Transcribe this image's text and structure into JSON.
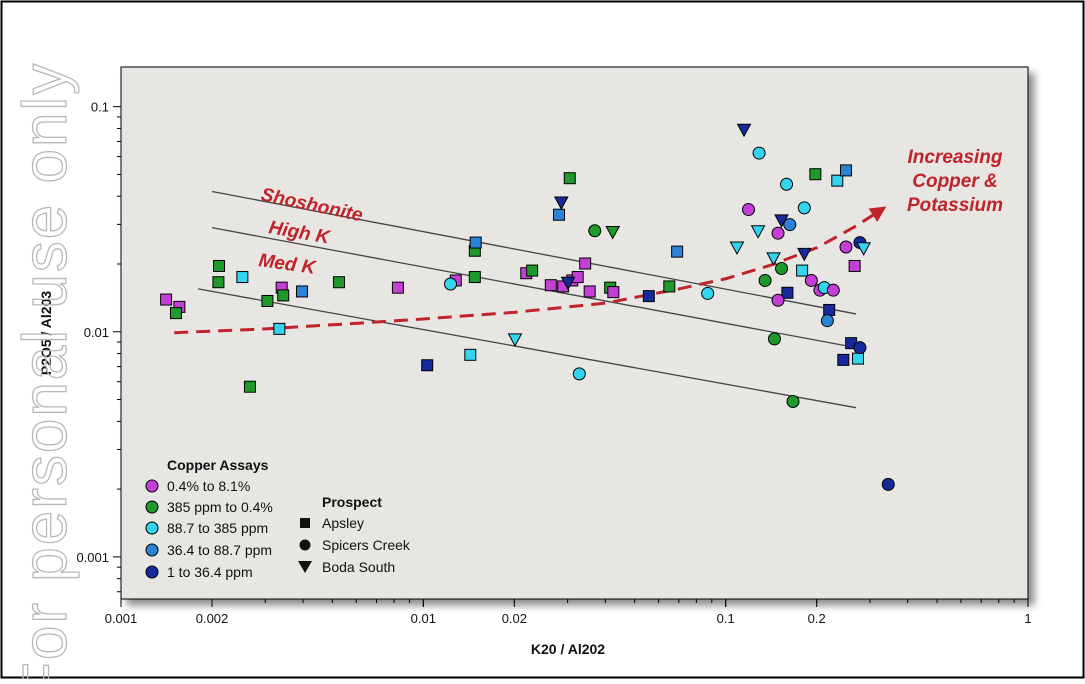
{
  "watermark": "For personal use only",
  "colors": {
    "background": "#ffffff",
    "plot_bg": "#e8e6e3",
    "frame": "#000000",
    "trend": "#c0232a",
    "magenta": "#c43fd6",
    "green": "#1e9a2c",
    "cyan": "#35d4ee",
    "blue": "#2b83d6",
    "navy": "#152a9c"
  },
  "chart_data": {
    "type": "scatter",
    "title": "",
    "xlabel": "K20 / Al202",
    "ylabel": "P2O5 / Al203",
    "x_scale": "log",
    "y_scale": "log",
    "xlim": [
      0.001,
      1
    ],
    "ylim": [
      0.00065,
      0.15
    ],
    "grid": false,
    "x_ticks": [
      {
        "value": 0.001,
        "label": "0.001"
      },
      {
        "value": 0.002,
        "label": "0.002"
      },
      {
        "value": 0.01,
        "label": "0.01"
      },
      {
        "value": 0.02,
        "label": "0.02"
      },
      {
        "value": 0.1,
        "label": "0.1"
      },
      {
        "value": 0.2,
        "label": "0.2"
      },
      {
        "value": 1,
        "label": "1"
      }
    ],
    "y_ticks": [
      {
        "value": 0.001,
        "label": "0.001"
      },
      {
        "value": 0.01,
        "label": "0.01"
      },
      {
        "value": 0.1,
        "label": "0.1"
      }
    ],
    "reference_lines": [
      {
        "label": "Shoshonite",
        "from": [
          0.002,
          0.042
        ],
        "to": [
          0.27,
          0.012
        ]
      },
      {
        "label": "High K",
        "from": [
          0.002,
          0.029
        ],
        "to": [
          0.27,
          0.0085
        ]
      },
      {
        "label": "Med K",
        "from": [
          0.0018,
          0.0155
        ],
        "to": [
          0.27,
          0.0046
        ]
      }
    ],
    "trend": {
      "label_lines": [
        "Increasing",
        "Copper &",
        "Potassium"
      ],
      "points": [
        [
          0.0015,
          0.0099
        ],
        [
          0.003,
          0.0103
        ],
        [
          0.006,
          0.0109
        ],
        [
          0.01,
          0.0114
        ],
        [
          0.02,
          0.0122
        ],
        [
          0.04,
          0.0134
        ],
        [
          0.07,
          0.0155
        ],
        [
          0.1,
          0.0172
        ],
        [
          0.14,
          0.0197
        ],
        [
          0.2,
          0.0236
        ],
        [
          0.27,
          0.0295
        ],
        [
          0.34,
          0.036
        ]
      ]
    },
    "legend": {
      "position": "bottom-left",
      "copper_title": "Copper Assays",
      "copper_classes": [
        {
          "key": "magenta",
          "label": "0.4% to 8.1%"
        },
        {
          "key": "green",
          "label": "385 ppm to 0.4%"
        },
        {
          "key": "cyan",
          "label": "88.7 to 385 ppm"
        },
        {
          "key": "blue",
          "label": "36.4 to 88.7 ppm"
        },
        {
          "key": "navy",
          "label": "1 to 36.4 ppm"
        }
      ],
      "prospect_title": "Prospect",
      "prospects": [
        {
          "shape": "square",
          "label": "Apsley"
        },
        {
          "shape": "circle",
          "label": "Spicers Creek"
        },
        {
          "shape": "triangle",
          "label": "Boda South"
        }
      ]
    },
    "points": [
      {
        "x": 0.00141,
        "y": 0.0139,
        "shape": "square",
        "cls": "magenta"
      },
      {
        "x": 0.00156,
        "y": 0.0129,
        "shape": "square",
        "cls": "magenta"
      },
      {
        "x": 0.00152,
        "y": 0.0121,
        "shape": "square",
        "cls": "green"
      },
      {
        "x": 0.00211,
        "y": 0.0196,
        "shape": "square",
        "cls": "green"
      },
      {
        "x": 0.0021,
        "y": 0.0166,
        "shape": "square",
        "cls": "green"
      },
      {
        "x": 0.00252,
        "y": 0.0175,
        "shape": "square",
        "cls": "cyan"
      },
      {
        "x": 0.00267,
        "y": 0.0057,
        "shape": "square",
        "cls": "green"
      },
      {
        "x": 0.00305,
        "y": 0.0137,
        "shape": "square",
        "cls": "green"
      },
      {
        "x": 0.0034,
        "y": 0.0157,
        "shape": "square",
        "cls": "magenta"
      },
      {
        "x": 0.00344,
        "y": 0.0145,
        "shape": "square",
        "cls": "green"
      },
      {
        "x": 0.00334,
        "y": 0.0103,
        "shape": "square",
        "cls": "cyan"
      },
      {
        "x": 0.00397,
        "y": 0.0151,
        "shape": "square",
        "cls": "blue"
      },
      {
        "x": 0.00526,
        "y": 0.0166,
        "shape": "square",
        "cls": "green"
      },
      {
        "x": 0.00824,
        "y": 0.0157,
        "shape": "square",
        "cls": "magenta"
      },
      {
        "x": 0.0103,
        "y": 0.0071,
        "shape": "square",
        "cls": "navy"
      },
      {
        "x": 0.0128,
        "y": 0.0169,
        "shape": "square",
        "cls": "magenta"
      },
      {
        "x": 0.0143,
        "y": 0.0079,
        "shape": "square",
        "cls": "cyan"
      },
      {
        "x": 0.0148,
        "y": 0.0175,
        "shape": "square",
        "cls": "green"
      },
      {
        "x": 0.0148,
        "y": 0.0229,
        "shape": "square",
        "cls": "green"
      },
      {
        "x": 0.0149,
        "y": 0.0249,
        "shape": "square",
        "cls": "blue"
      },
      {
        "x": 0.0219,
        "y": 0.0182,
        "shape": "square",
        "cls": "magenta"
      },
      {
        "x": 0.0229,
        "y": 0.0187,
        "shape": "square",
        "cls": "green"
      },
      {
        "x": 0.0264,
        "y": 0.0161,
        "shape": "square",
        "cls": "magenta"
      },
      {
        "x": 0.0281,
        "y": 0.0331,
        "shape": "square",
        "cls": "blue"
      },
      {
        "x": 0.029,
        "y": 0.0159,
        "shape": "square",
        "cls": "magenta"
      },
      {
        "x": 0.0305,
        "y": 0.0481,
        "shape": "square",
        "cls": "green"
      },
      {
        "x": 0.0311,
        "y": 0.0169,
        "shape": "square",
        "cls": "magenta"
      },
      {
        "x": 0.0324,
        "y": 0.0175,
        "shape": "square",
        "cls": "magenta"
      },
      {
        "x": 0.0343,
        "y": 0.0201,
        "shape": "square",
        "cls": "magenta"
      },
      {
        "x": 0.0355,
        "y": 0.0151,
        "shape": "square",
        "cls": "magenta"
      },
      {
        "x": 0.0415,
        "y": 0.0157,
        "shape": "square",
        "cls": "green"
      },
      {
        "x": 0.0425,
        "y": 0.015,
        "shape": "square",
        "cls": "magenta"
      },
      {
        "x": 0.0557,
        "y": 0.0144,
        "shape": "square",
        "cls": "navy"
      },
      {
        "x": 0.0651,
        "y": 0.0159,
        "shape": "square",
        "cls": "green"
      },
      {
        "x": 0.0691,
        "y": 0.0227,
        "shape": "square",
        "cls": "blue"
      },
      {
        "x": 0.16,
        "y": 0.0149,
        "shape": "square",
        "cls": "navy"
      },
      {
        "x": 0.179,
        "y": 0.0187,
        "shape": "square",
        "cls": "cyan"
      },
      {
        "x": 0.198,
        "y": 0.0501,
        "shape": "square",
        "cls": "green"
      },
      {
        "x": 0.22,
        "y": 0.0125,
        "shape": "square",
        "cls": "navy"
      },
      {
        "x": 0.234,
        "y": 0.0469,
        "shape": "square",
        "cls": "cyan"
      },
      {
        "x": 0.25,
        "y": 0.0521,
        "shape": "square",
        "cls": "blue"
      },
      {
        "x": 0.245,
        "y": 0.0075,
        "shape": "square",
        "cls": "navy"
      },
      {
        "x": 0.26,
        "y": 0.0089,
        "shape": "square",
        "cls": "navy"
      },
      {
        "x": 0.267,
        "y": 0.0196,
        "shape": "square",
        "cls": "magenta"
      },
      {
        "x": 0.274,
        "y": 0.0076,
        "shape": "square",
        "cls": "cyan"
      },
      {
        "x": 0.0123,
        "y": 0.0163,
        "shape": "circle",
        "cls": "cyan"
      },
      {
        "x": 0.0328,
        "y": 0.0065,
        "shape": "circle",
        "cls": "cyan"
      },
      {
        "x": 0.0369,
        "y": 0.0281,
        "shape": "circle",
        "cls": "green"
      },
      {
        "x": 0.0872,
        "y": 0.0148,
        "shape": "circle",
        "cls": "cyan"
      },
      {
        "x": 0.119,
        "y": 0.0349,
        "shape": "circle",
        "cls": "magenta"
      },
      {
        "x": 0.129,
        "y": 0.0622,
        "shape": "circle",
        "cls": "cyan"
      },
      {
        "x": 0.135,
        "y": 0.0169,
        "shape": "circle",
        "cls": "green"
      },
      {
        "x": 0.145,
        "y": 0.0093,
        "shape": "circle",
        "cls": "green"
      },
      {
        "x": 0.149,
        "y": 0.0138,
        "shape": "circle",
        "cls": "magenta"
      },
      {
        "x": 0.149,
        "y": 0.0274,
        "shape": "circle",
        "cls": "magenta"
      },
      {
        "x": 0.153,
        "y": 0.0191,
        "shape": "circle",
        "cls": "green"
      },
      {
        "x": 0.159,
        "y": 0.0452,
        "shape": "circle",
        "cls": "cyan"
      },
      {
        "x": 0.163,
        "y": 0.0299,
        "shape": "circle",
        "cls": "blue"
      },
      {
        "x": 0.167,
        "y": 0.0049,
        "shape": "circle",
        "cls": "green"
      },
      {
        "x": 0.182,
        "y": 0.0355,
        "shape": "circle",
        "cls": "cyan"
      },
      {
        "x": 0.192,
        "y": 0.0169,
        "shape": "circle",
        "cls": "magenta"
      },
      {
        "x": 0.205,
        "y": 0.0153,
        "shape": "circle",
        "cls": "magenta"
      },
      {
        "x": 0.212,
        "y": 0.0157,
        "shape": "circle",
        "cls": "cyan"
      },
      {
        "x": 0.217,
        "y": 0.0112,
        "shape": "circle",
        "cls": "blue"
      },
      {
        "x": 0.227,
        "y": 0.0153,
        "shape": "circle",
        "cls": "magenta"
      },
      {
        "x": 0.25,
        "y": 0.0238,
        "shape": "circle",
        "cls": "magenta"
      },
      {
        "x": 0.278,
        "y": 0.0085,
        "shape": "circle",
        "cls": "navy"
      },
      {
        "x": 0.278,
        "y": 0.0249,
        "shape": "circle",
        "cls": "navy"
      },
      {
        "x": 0.345,
        "y": 0.0021,
        "shape": "circle",
        "cls": "navy"
      },
      {
        "x": 0.0201,
        "y": 0.0093,
        "shape": "triangle",
        "cls": "cyan"
      },
      {
        "x": 0.0286,
        "y": 0.0377,
        "shape": "triangle",
        "cls": "navy"
      },
      {
        "x": 0.0301,
        "y": 0.0166,
        "shape": "triangle",
        "cls": "navy"
      },
      {
        "x": 0.0423,
        "y": 0.0279,
        "shape": "triangle",
        "cls": "green"
      },
      {
        "x": 0.109,
        "y": 0.0238,
        "shape": "triangle",
        "cls": "cyan"
      },
      {
        "x": 0.115,
        "y": 0.0794,
        "shape": "triangle",
        "cls": "navy"
      },
      {
        "x": 0.128,
        "y": 0.0281,
        "shape": "triangle",
        "cls": "cyan"
      },
      {
        "x": 0.144,
        "y": 0.0213,
        "shape": "triangle",
        "cls": "cyan"
      },
      {
        "x": 0.153,
        "y": 0.0314,
        "shape": "triangle",
        "cls": "navy"
      },
      {
        "x": 0.182,
        "y": 0.0223,
        "shape": "triangle",
        "cls": "navy"
      },
      {
        "x": 0.286,
        "y": 0.0236,
        "shape": "triangle",
        "cls": "cyan"
      }
    ]
  }
}
